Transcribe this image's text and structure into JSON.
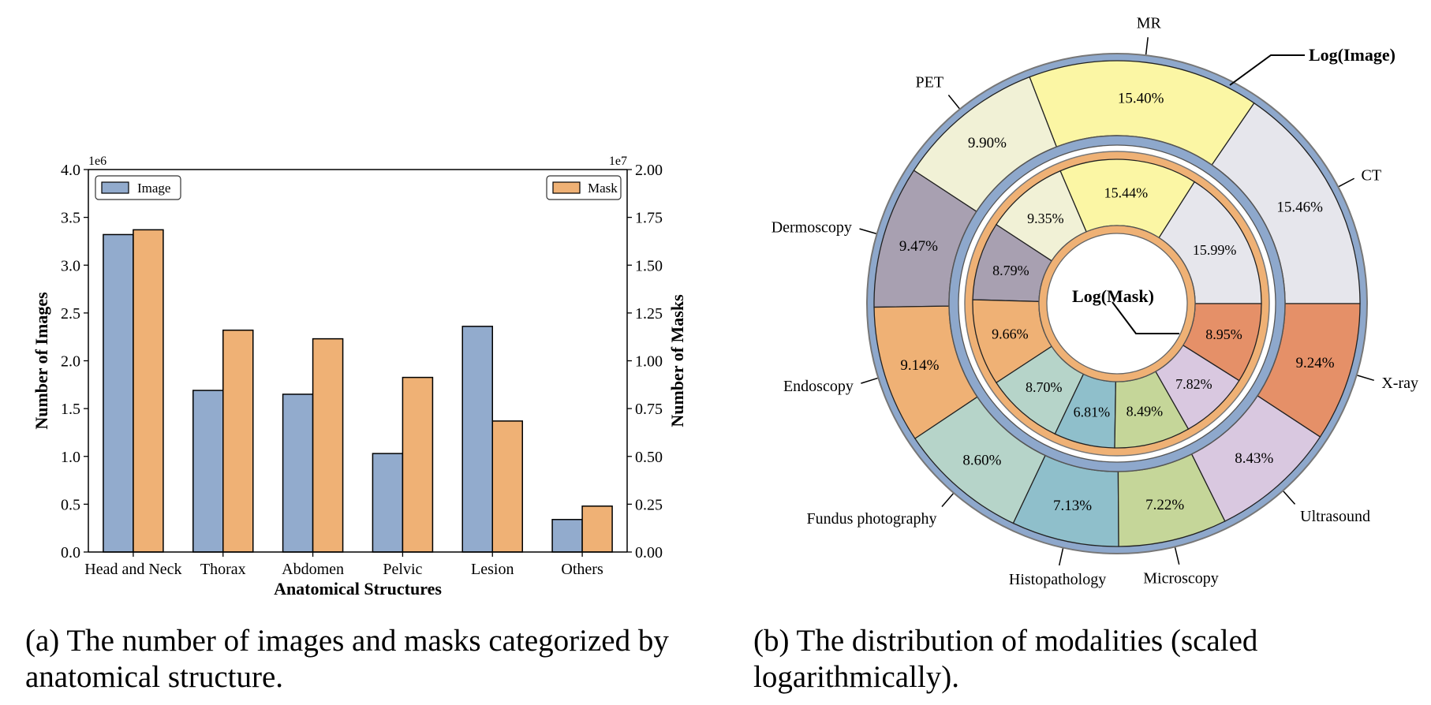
{
  "captions": {
    "a": "(a) The number of images and masks categorized by anatomical structure.",
    "b": "(b) The distribution of modalities (scaled logarithmically)."
  },
  "colors": {
    "image": "#92abcd",
    "mask": "#efb175",
    "ring_outer": "#8ea8cc",
    "ring_inner": "#efb175"
  },
  "chart_data": [
    {
      "type": "bar",
      "categories": [
        "Head and Neck",
        "Thorax",
        "Abdomen",
        "Pelvic",
        "Lesion",
        "Others"
      ],
      "series": [
        {
          "name": "Image",
          "axis": "left",
          "values": [
            3320000,
            1690000,
            1650000,
            1030000,
            2360000,
            340000
          ]
        },
        {
          "name": "Mask",
          "axis": "right",
          "values": [
            16850000,
            11600000,
            11150000,
            9130000,
            6850000,
            2400000
          ]
        }
      ],
      "xlabel": "Anatomical Structures",
      "ylabel": "Number of Images",
      "y2label": "Number of Masks",
      "ylim": [
        0,
        4000000
      ],
      "y2lim": [
        0,
        20000000
      ],
      "yticks": [
        "0.0",
        "0.5",
        "1.0",
        "1.5",
        "2.0",
        "2.5",
        "3.0",
        "3.5",
        "4.0"
      ],
      "y2ticks": [
        "0.00",
        "0.25",
        "0.50",
        "0.75",
        "1.00",
        "1.25",
        "1.50",
        "1.75",
        "2.00"
      ],
      "yscale_label": "1e6",
      "y2scale_label": "1e7",
      "legend": {
        "image": "top-left",
        "mask": "top-right"
      },
      "grid": false
    },
    {
      "type": "pie",
      "variant": "nested-donut",
      "outer_ring": {
        "name": "Log(Image)",
        "labels": [
          "CT",
          "MR",
          "PET",
          "Dermoscopy",
          "Endoscopy",
          "Fundus photography",
          "Histopathology",
          "Microscopy",
          "Ultrasound",
          "X-ray"
        ],
        "values": [
          15.46,
          15.4,
          9.9,
          9.47,
          9.14,
          8.6,
          7.13,
          7.22,
          8.43,
          9.24
        ],
        "texts": [
          "15.46%",
          "15.40%",
          "9.90%",
          "9.47%",
          "9.14%",
          "8.60%",
          "7.13%",
          "7.22%",
          "8.43%",
          "9.24%"
        ]
      },
      "inner_ring": {
        "name": "Log(Mask)",
        "values": [
          15.99,
          15.44,
          9.35,
          8.79,
          9.66,
          8.7,
          6.81,
          8.49,
          7.82,
          8.95
        ],
        "texts": [
          "15.99%",
          "15.44%",
          "9.35%",
          "8.79%",
          "9.66%",
          "8.70%",
          "6.81%",
          "8.49%",
          "7.82%",
          "8.95%"
        ]
      },
      "slice_colors": [
        "#e6e6ec",
        "#fbf6a4",
        "#f1f1d6",
        "#a8a0b1",
        "#efb175",
        "#b6d4c9",
        "#8fbfcb",
        "#c5d699",
        "#d9c8e0",
        "#e59068"
      ],
      "start": "3 o'clock, counter-clockwise"
    }
  ]
}
